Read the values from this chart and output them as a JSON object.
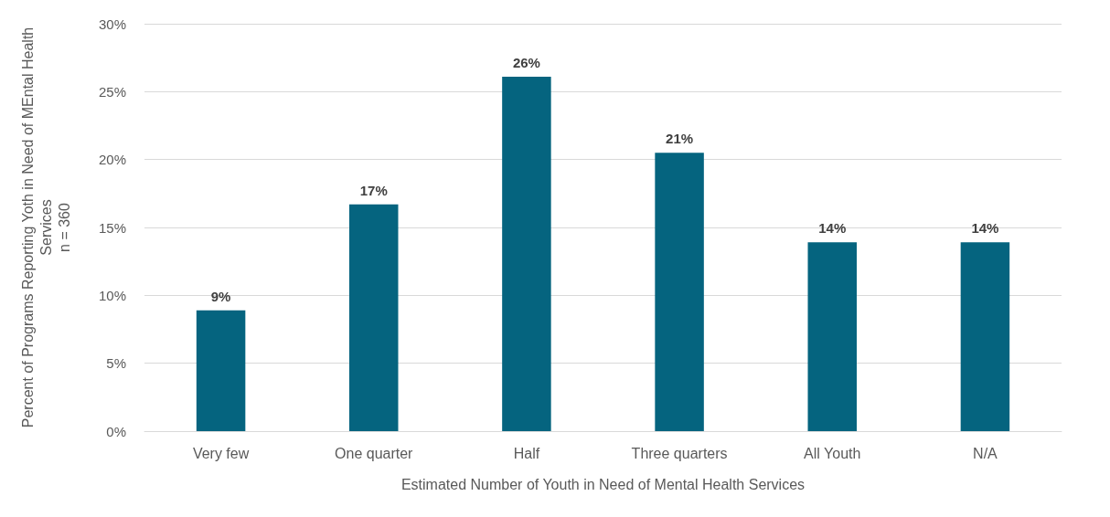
{
  "chart_data": {
    "type": "bar",
    "xlabel": "Estimated Number of Youth in Need of Mental Health Services",
    "ylabel": "Percent of Programs Reporting Yoth in Need of MEntal Health\nServices\nn = 360",
    "categories": [
      "Very few",
      "One quarter",
      "Half",
      "Three quarters",
      "All Youth",
      "N/A"
    ],
    "values": [
      8.9,
      16.7,
      26.1,
      20.5,
      13.9,
      13.9
    ],
    "value_labels": [
      "9%",
      "17%",
      "26%",
      "21%",
      "14%",
      "14%"
    ],
    "color": "#05647f",
    "ylim": [
      0,
      30
    ],
    "yticks": [
      {
        "value": 0,
        "label": "0%"
      },
      {
        "value": 5,
        "label": "5%"
      },
      {
        "value": 10,
        "label": "10%"
      },
      {
        "value": 15,
        "label": "15%"
      },
      {
        "value": 20,
        "label": "20%"
      },
      {
        "value": 25,
        "label": "25%"
      },
      {
        "value": 30,
        "label": "30%"
      }
    ],
    "grid": "y"
  }
}
